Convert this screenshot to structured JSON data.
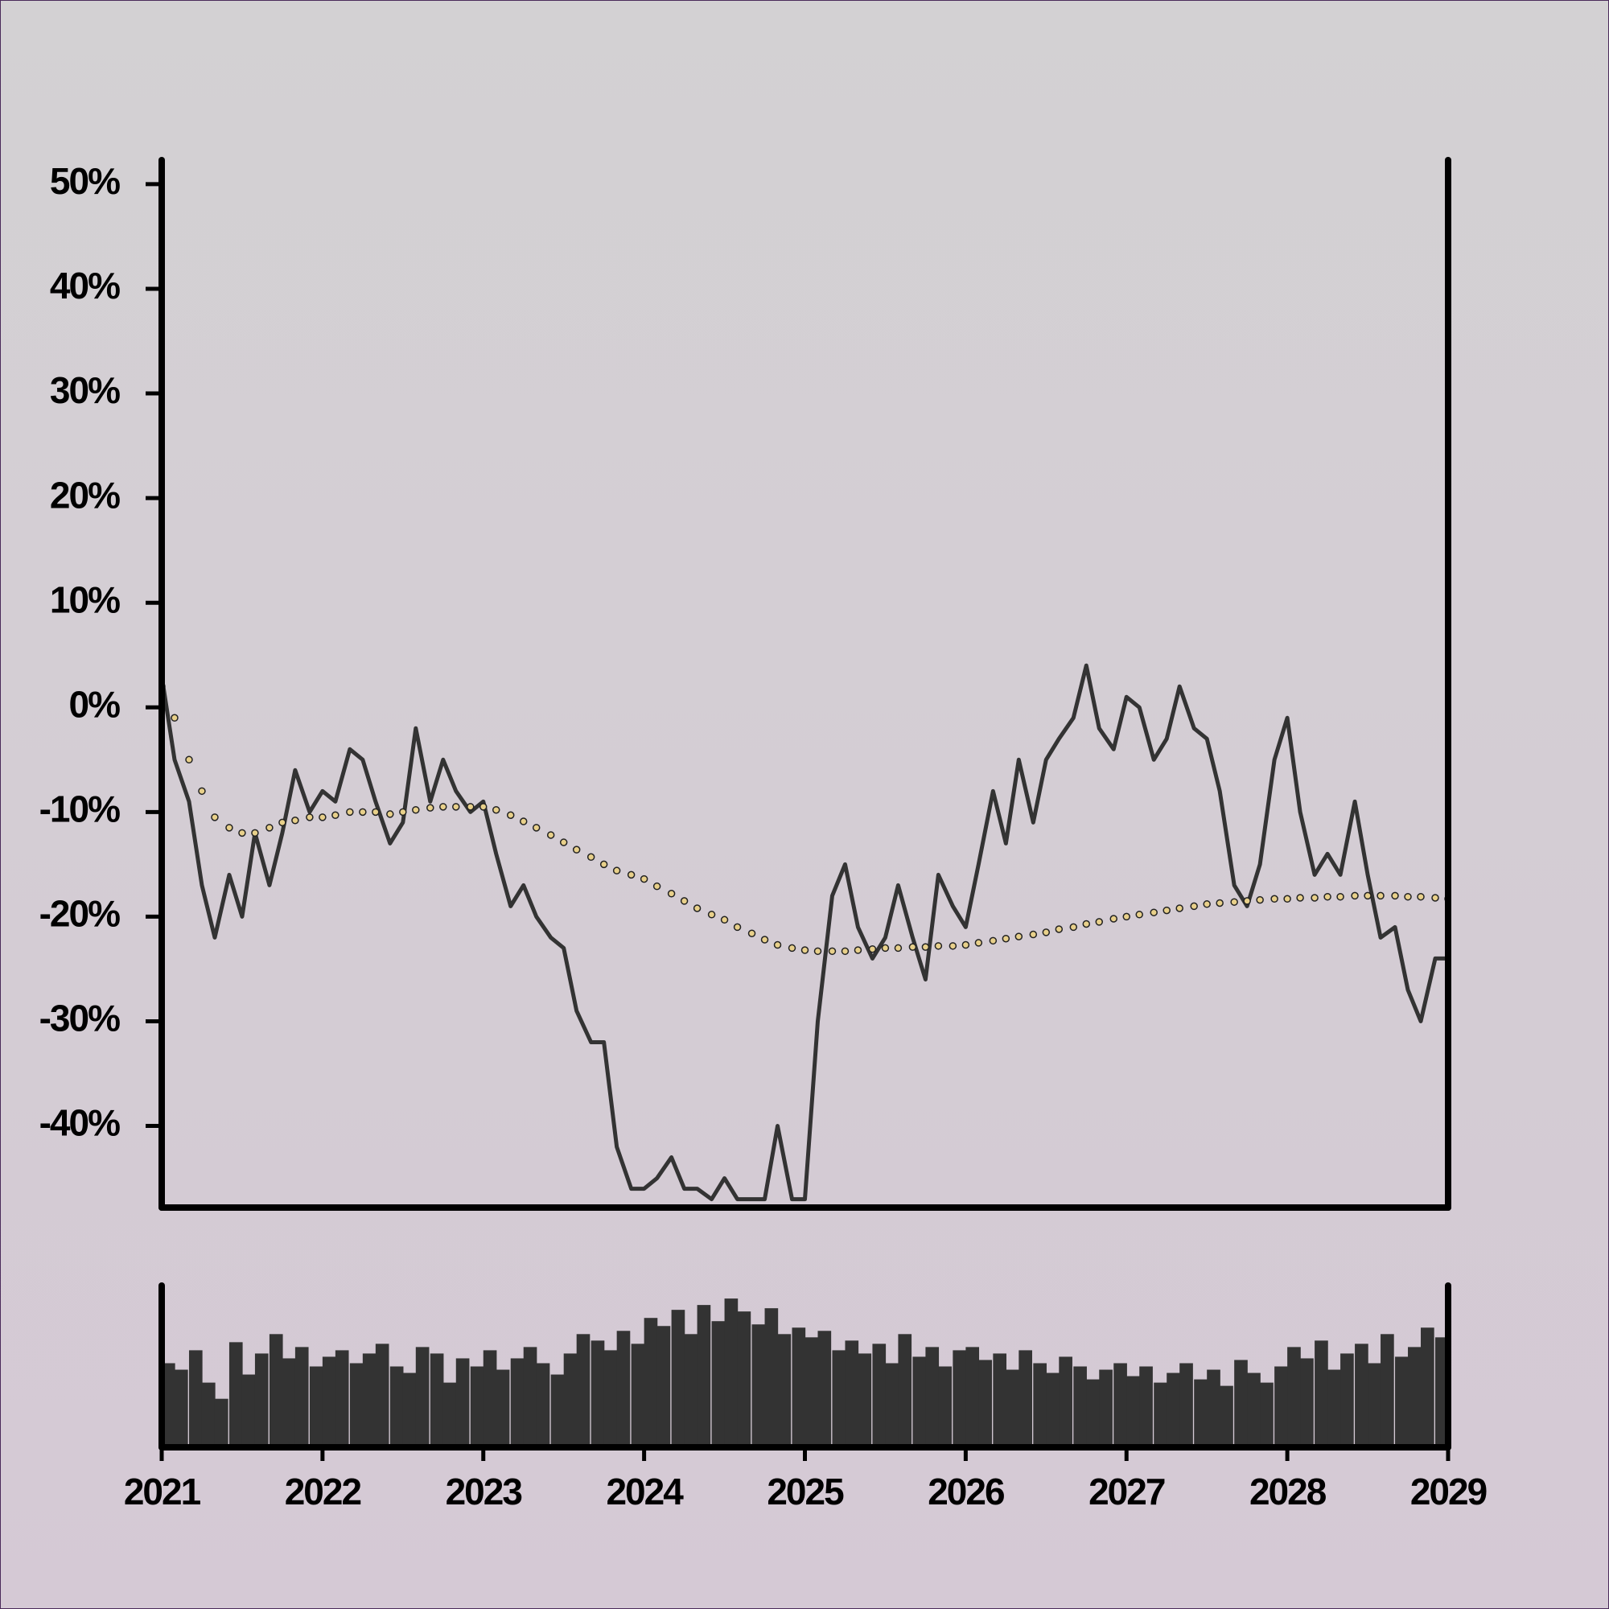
{
  "chart_data": [
    {
      "type": "line",
      "x": [
        2021,
        2021.08,
        2021.17,
        2021.25,
        2021.33,
        2021.42,
        2021.5,
        2021.58,
        2021.67,
        2021.75,
        2021.83,
        2021.92,
        2022,
        2022.08,
        2022.17,
        2022.25,
        2022.33,
        2022.42,
        2022.5,
        2022.58,
        2022.67,
        2022.75,
        2022.83,
        2022.92,
        2023,
        2023.08,
        2023.17,
        2023.25,
        2023.33,
        2023.42,
        2023.5,
        2023.58,
        2023.67,
        2023.75,
        2023.83,
        2023.92,
        2024,
        2024.08,
        2024.17,
        2024.25,
        2024.33,
        2024.42,
        2024.5,
        2024.58,
        2024.67,
        2024.75,
        2024.83,
        2024.92,
        2025,
        2025.08,
        2025.17,
        2025.25,
        2025.33,
        2025.42,
        2025.5,
        2025.58,
        2025.67,
        2025.75,
        2025.83,
        2025.92,
        2026,
        2026.08,
        2026.17,
        2026.25,
        2026.33,
        2026.42,
        2026.5,
        2026.58,
        2026.67,
        2026.75,
        2026.83,
        2026.92,
        2027,
        2027.08,
        2027.17,
        2027.25,
        2027.33,
        2027.42,
        2027.5,
        2027.58,
        2027.67,
        2027.75,
        2027.83,
        2027.92,
        2028,
        2028.08,
        2028.17,
        2028.25,
        2028.33,
        2028.42,
        2028.5,
        2028.58,
        2028.67,
        2028.75,
        2028.83,
        2028.92,
        2029
      ],
      "series": [
        {
          "color": "#333333",
          "style": "solid",
          "values": [
            3,
            -5,
            -9,
            -17,
            -22,
            -16,
            -20,
            -12,
            -17,
            -12,
            -6,
            -10,
            -8,
            -9,
            -4,
            -5,
            -9,
            -13,
            -11,
            -2,
            -9,
            -5,
            -8,
            -10,
            -9,
            -14,
            -19,
            -17,
            -20,
            -22,
            -23,
            -29,
            -32,
            -32,
            -42,
            -46,
            -46,
            -45,
            -43,
            -46,
            -46,
            -47,
            -45,
            -47,
            -47,
            -47,
            -40,
            -47,
            -47,
            -30,
            -18,
            -15,
            -21,
            -24,
            -22,
            -17,
            -22,
            -26,
            -16,
            -19,
            -21,
            -15,
            -8,
            -13,
            -5,
            -11,
            -5,
            -3,
            -1,
            4,
            -2,
            -4,
            1,
            0,
            -5,
            -3,
            2,
            -2,
            -3,
            -8,
            -17,
            -19,
            -15,
            -5,
            -1,
            -10,
            -16,
            -14,
            -16,
            -9,
            -16,
            -22,
            -21,
            -27,
            -30,
            -24,
            -24
          ]
        },
        {
          "color": "#e8d08a",
          "style": "dotted",
          "values": [
            2,
            -1,
            -5,
            -8,
            -10.5,
            -11.5,
            -12,
            -12,
            -11.5,
            -11,
            -10.8,
            -10.5,
            -10.5,
            -10.3,
            -10,
            -10,
            -10,
            -10.2,
            -10,
            -9.8,
            -9.6,
            -9.5,
            -9.5,
            -9.5,
            -9.5,
            -9.8,
            -10.3,
            -10.9,
            -11.5,
            -12.2,
            -12.9,
            -13.6,
            -14.3,
            -15,
            -15.6,
            -16,
            -16.4,
            -17.1,
            -17.8,
            -18.5,
            -19.2,
            -19.8,
            -20.3,
            -21,
            -21.6,
            -22.2,
            -22.7,
            -23,
            -23.2,
            -23.3,
            -23.3,
            -23.3,
            -23.2,
            -23.1,
            -23,
            -23,
            -22.9,
            -22.9,
            -22.8,
            -22.8,
            -22.7,
            -22.5,
            -22.3,
            -22.1,
            -21.9,
            -21.7,
            -21.5,
            -21.2,
            -21,
            -20.7,
            -20.5,
            -20.2,
            -20,
            -19.8,
            -19.6,
            -19.4,
            -19.2,
            -19,
            -18.8,
            -18.7,
            -18.6,
            -18.5,
            -18.4,
            -18.3,
            -18.3,
            -18.2,
            -18.2,
            -18.1,
            -18.1,
            -18,
            -18,
            -18,
            -18,
            -18.1,
            -18.1,
            -18.2,
            -18.3
          ]
        }
      ],
      "xlim": [
        2021,
        2029
      ],
      "ylim": [
        -47.8,
        52.3
      ],
      "yticks": [
        {
          "value": 50,
          "label": "50%"
        },
        {
          "value": 40,
          "label": "40%"
        },
        {
          "value": 30,
          "label": "30%"
        },
        {
          "value": 20,
          "label": "20%"
        },
        {
          "value": 10,
          "label": "10%"
        },
        {
          "value": 0,
          "label": "0%"
        },
        {
          "value": -10,
          "label": "-10%"
        },
        {
          "value": -20,
          "label": "-20%"
        },
        {
          "value": -30,
          "label": "-30%"
        },
        {
          "value": -40,
          "label": "-40%"
        }
      ]
    },
    {
      "type": "bar",
      "x": [
        2021,
        2021.08,
        2021.17,
        2021.25,
        2021.33,
        2021.42,
        2021.5,
        2021.58,
        2021.67,
        2021.75,
        2021.83,
        2021.92,
        2022,
        2022.08,
        2022.17,
        2022.25,
        2022.33,
        2022.42,
        2022.5,
        2022.58,
        2022.67,
        2022.75,
        2022.83,
        2022.92,
        2023,
        2023.08,
        2023.17,
        2023.25,
        2023.33,
        2023.42,
        2023.5,
        2023.58,
        2023.67,
        2023.75,
        2023.83,
        2023.92,
        2024,
        2024.08,
        2024.17,
        2024.25,
        2024.33,
        2024.42,
        2024.5,
        2024.58,
        2024.67,
        2024.75,
        2024.83,
        2024.92,
        2025,
        2025.08,
        2025.17,
        2025.25,
        2025.33,
        2025.42,
        2025.5,
        2025.58,
        2025.67,
        2025.75,
        2025.83,
        2025.92,
        2026,
        2026.08,
        2026.17,
        2026.25,
        2026.33,
        2026.42,
        2026.5,
        2026.58,
        2026.67,
        2026.75,
        2026.83,
        2026.92,
        2027,
        2027.08,
        2027.17,
        2027.25,
        2027.33,
        2027.42,
        2027.5,
        2027.58,
        2027.67,
        2027.75,
        2027.83,
        2027.92,
        2028,
        2028.08,
        2028.17,
        2028.25,
        2028.33,
        2028.42,
        2028.5,
        2028.58,
        2028.67,
        2028.75,
        2028.83,
        2028.92
      ],
      "values": [
        52,
        48,
        60,
        40,
        30,
        65,
        45,
        58,
        70,
        55,
        62,
        50,
        56,
        60,
        52,
        58,
        64,
        50,
        46,
        62,
        58,
        40,
        55,
        50,
        60,
        48,
        55,
        62,
        52,
        45,
        58,
        70,
        66,
        60,
        72,
        64,
        80,
        75,
        85,
        70,
        88,
        78,
        92,
        84,
        76,
        86,
        70,
        74,
        68,
        72,
        60,
        66,
        58,
        64,
        52,
        70,
        56,
        62,
        50,
        60,
        62,
        54,
        58,
        48,
        60,
        52,
        46,
        56,
        50,
        42,
        48,
        52,
        44,
        50,
        40,
        46,
        52,
        42,
        48,
        38,
        54,
        46,
        40,
        50,
        62,
        55,
        66,
        48,
        58,
        64,
        52,
        70,
        56,
        62,
        74,
        68
      ],
      "color": "#333333",
      "xlim": [
        2021,
        2029
      ],
      "ylim": [
        0,
        100
      ],
      "xticks": [
        2021,
        2022,
        2023,
        2024,
        2025,
        2026,
        2027,
        2028,
        2029
      ]
    }
  ]
}
